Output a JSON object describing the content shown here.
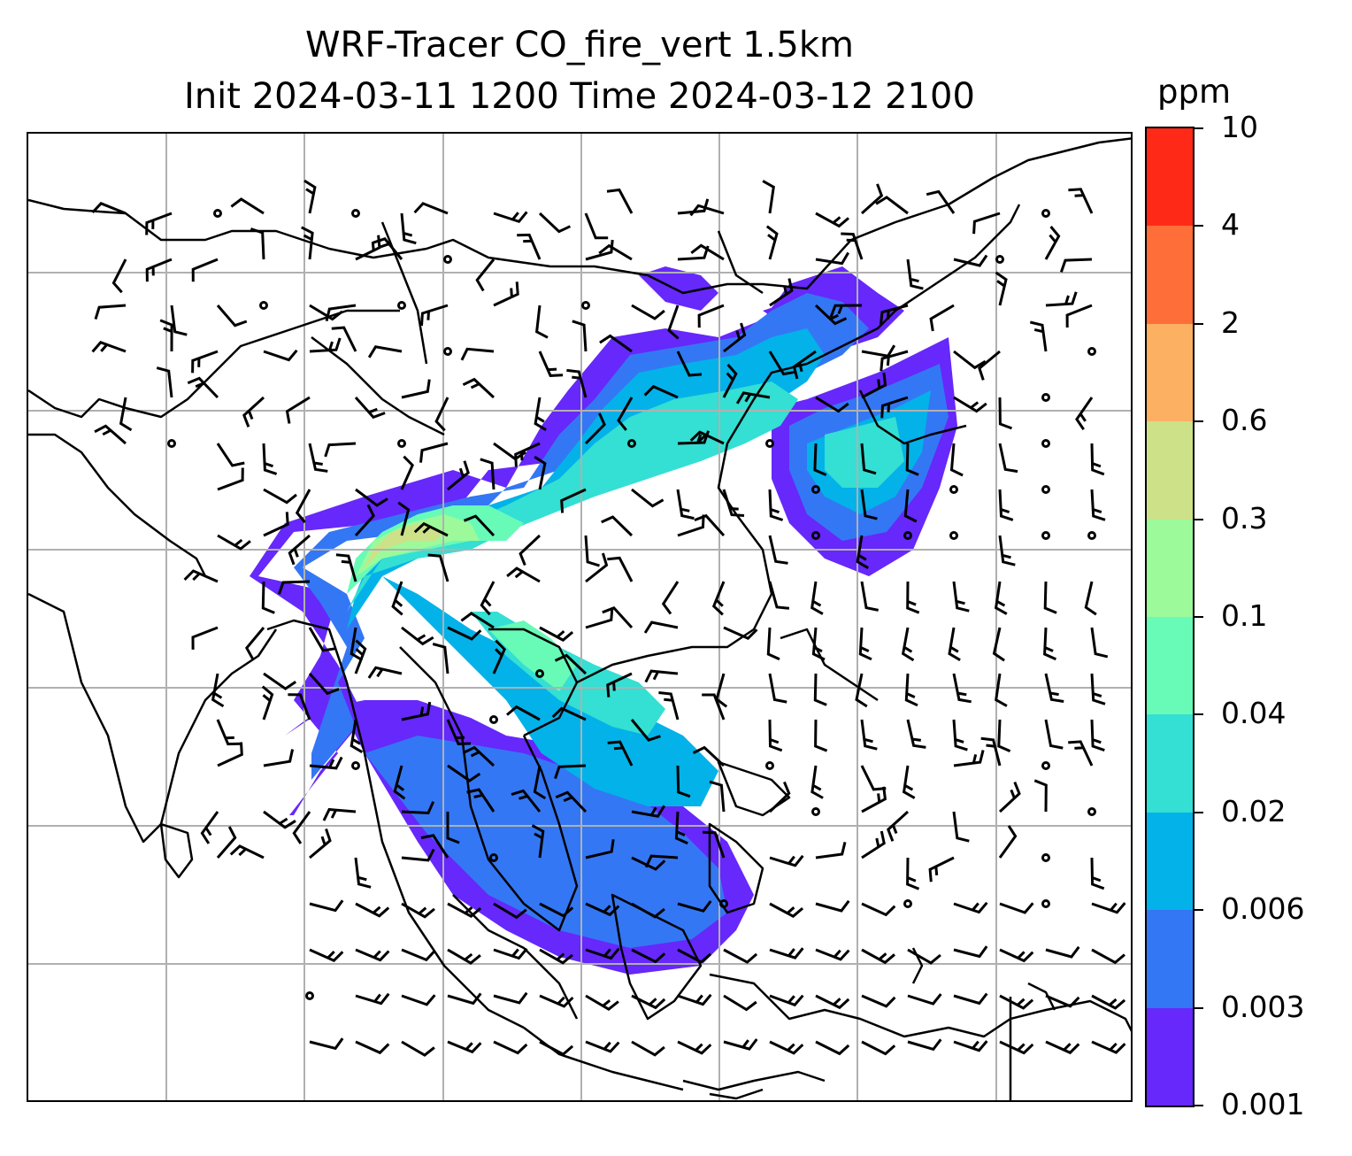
{
  "title_line1": "WRF-Tracer CO_fire_vert 1.5km",
  "title_line2": "Init 2024-03-11 1200 Time 2024-03-12 2100",
  "colorbar": {
    "unit": "ppm",
    "levels": [
      "0.001",
      "0.003",
      "0.006",
      "0.02",
      "0.04",
      "0.1",
      "0.3",
      "0.6",
      "2",
      "4",
      "10"
    ],
    "colors": [
      "#6628fb",
      "#3477f4",
      "#03b2e8",
      "#34dfd3",
      "#67fbb7",
      "#9cfa9b",
      "#cde188",
      "#fcb062",
      "#fe6e39",
      "#fe2a17"
    ]
  },
  "map": {
    "layer": "CO fire tracer at 1.5km with wind barbs",
    "gridlines": true,
    "coastlines": true
  }
}
